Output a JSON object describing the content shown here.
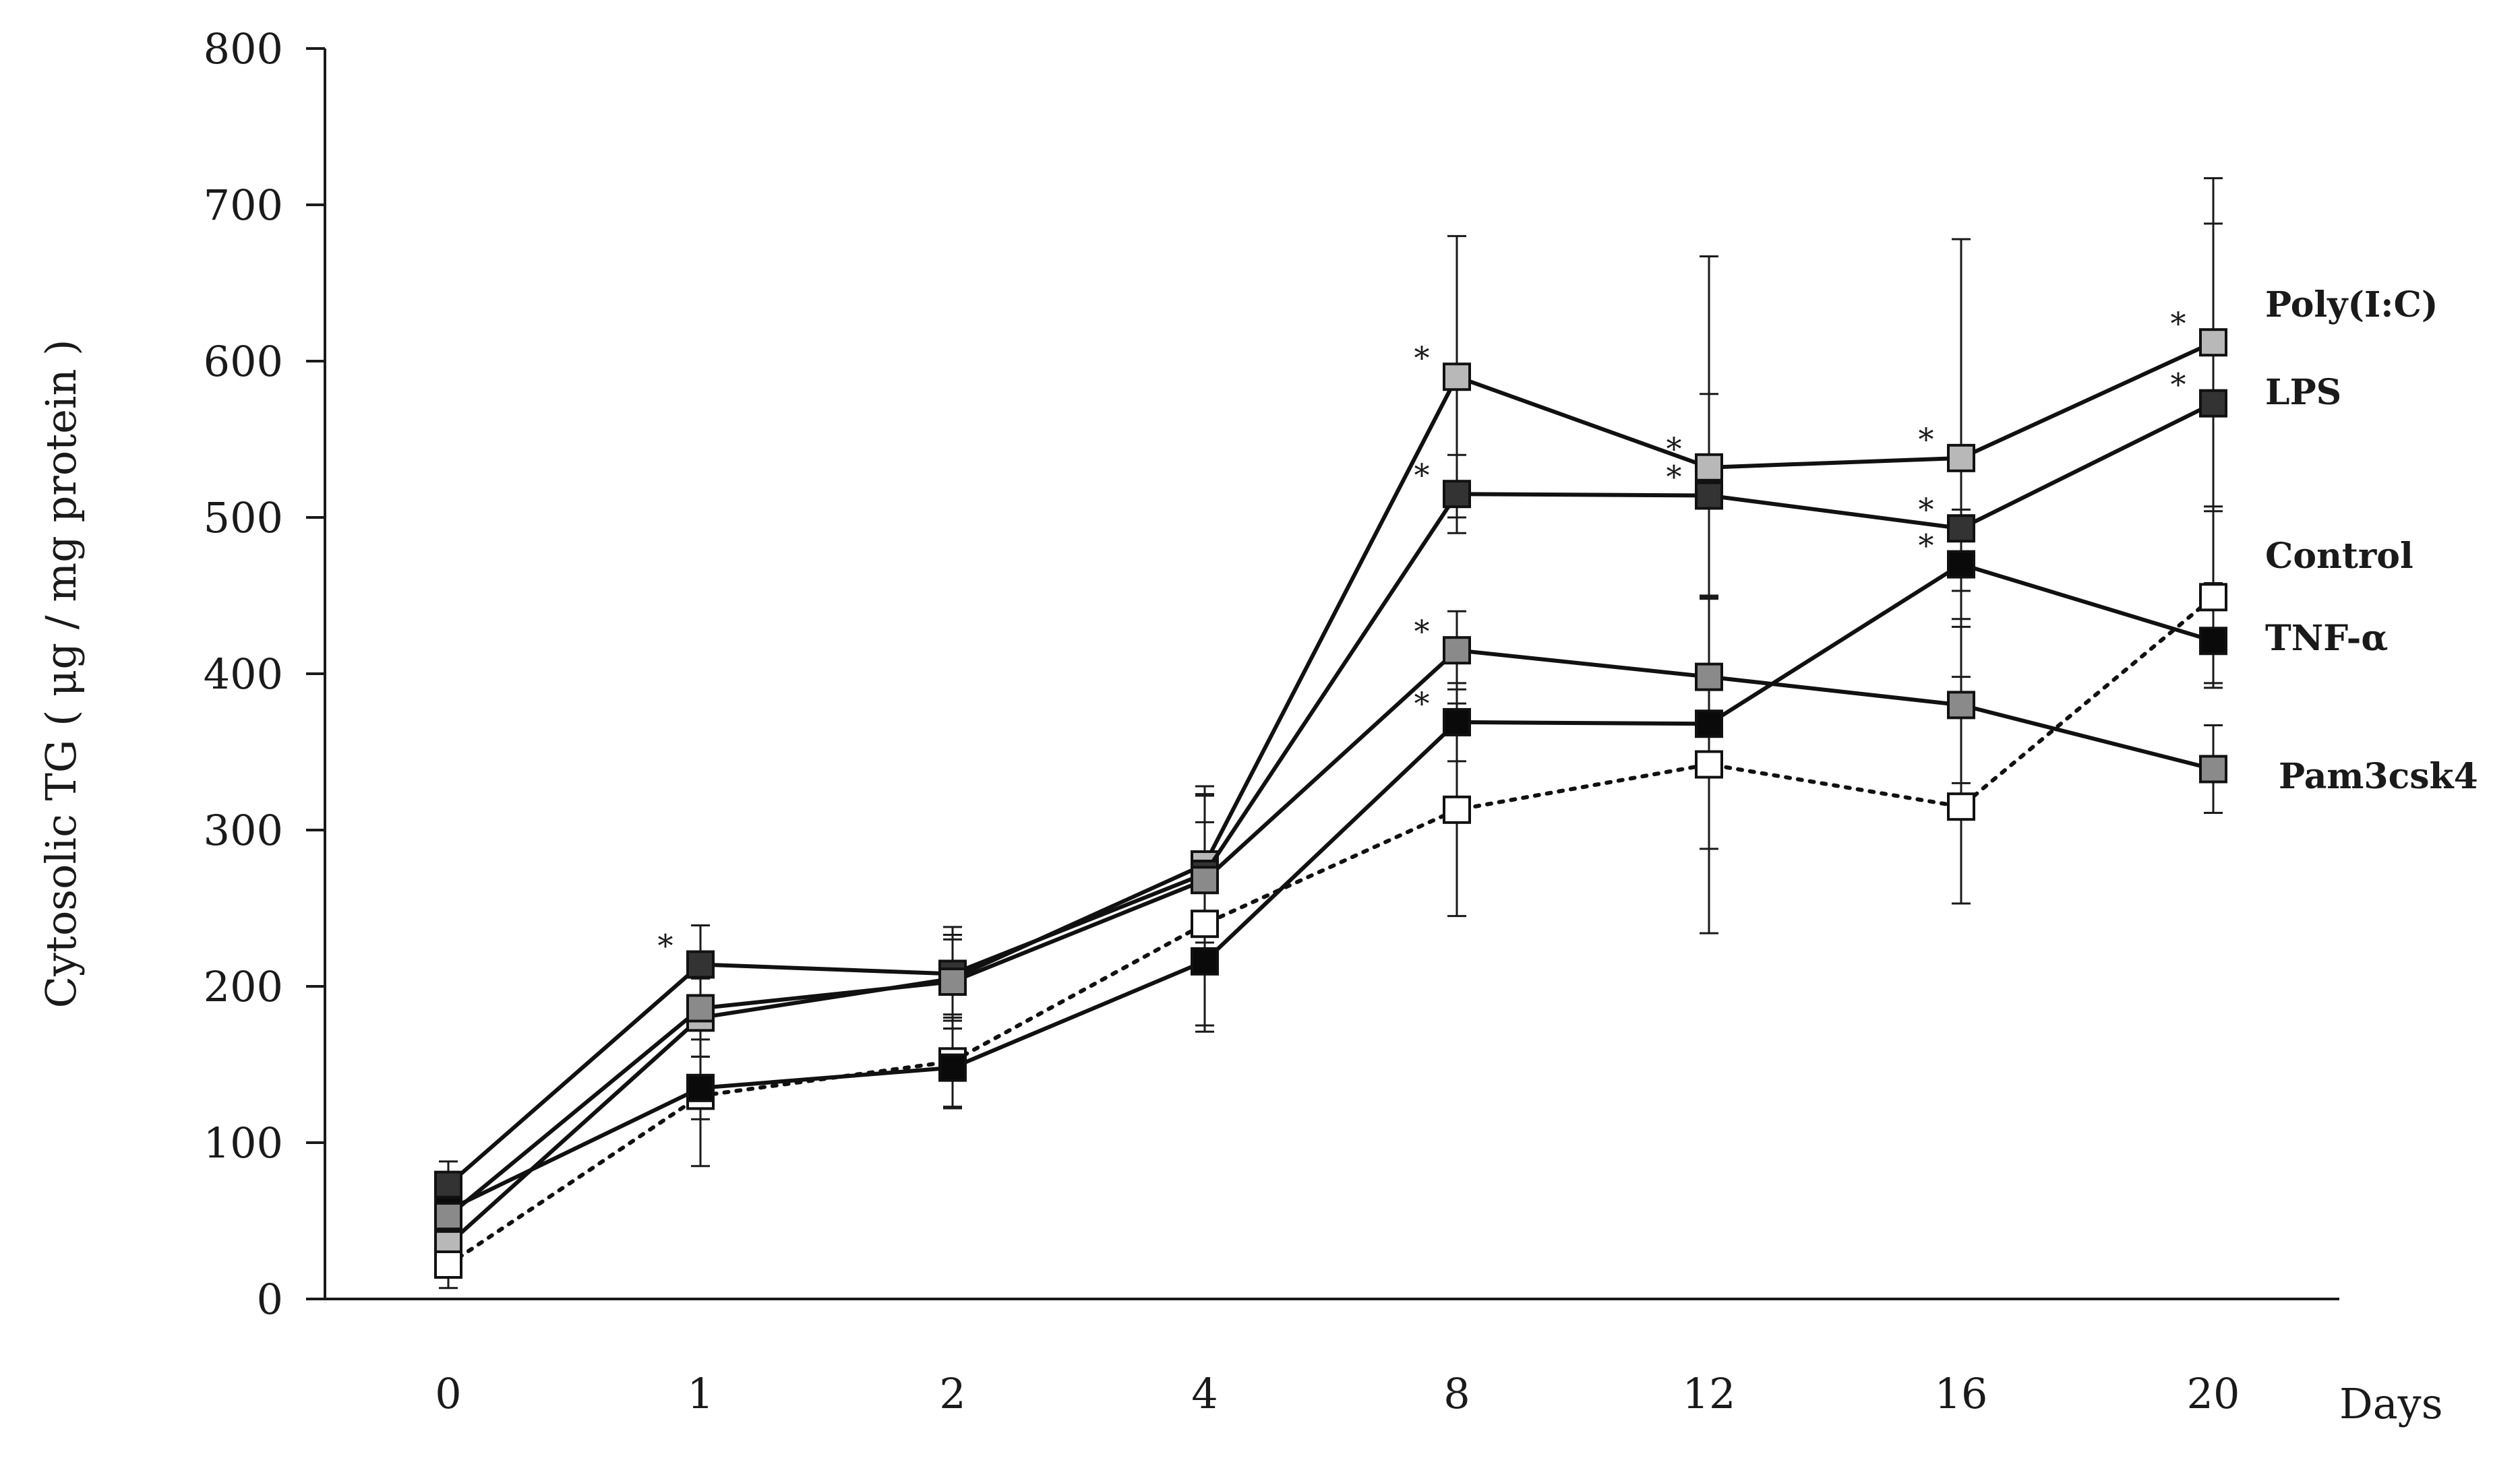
{
  "chart_data": {
    "type": "line",
    "xlabel": "Days",
    "ylabel": "Cytosolic TG ( μg / mg protein )",
    "ylim": [
      0,
      800
    ],
    "yticks": [
      0,
      100,
      200,
      300,
      400,
      500,
      600,
      700,
      800
    ],
    "categories": [
      "0",
      "1",
      "2",
      "4",
      "8",
      "12",
      "16",
      "20"
    ],
    "grid": false,
    "legend": "inline labels at right end of each series",
    "series": [
      {
        "name": "Poly(I:C)",
        "marker_fill": "#b8b8b8",
        "line_style": "solid",
        "values": [
          35,
          180,
          205,
          278,
          590,
          532,
          538,
          612
        ],
        "errors": [
          null,
          25,
          25,
          50,
          90,
          135,
          140,
          105
        ],
        "significant": [
          false,
          false,
          false,
          false,
          true,
          true,
          true,
          true
        ]
      },
      {
        "name": "LPS",
        "marker_fill": "#333333",
        "line_style": "solid",
        "values": [
          73,
          214,
          208,
          272,
          515,
          514,
          493,
          573
        ],
        "errors": [
          15,
          25,
          30,
          50,
          25,
          65,
          40,
          115
        ],
        "significant": [
          false,
          true,
          false,
          false,
          true,
          true,
          true,
          true
        ]
      },
      {
        "name": "Control",
        "marker_fill": "#ffffff",
        "line_style": "dotted",
        "values": [
          22,
          130,
          152,
          240,
          313,
          342,
          315,
          449
        ],
        "errors": [
          15,
          45,
          30,
          65,
          68,
          108,
          62,
          55
        ],
        "significant": [
          false,
          false,
          false,
          false,
          false,
          false,
          false,
          false
        ]
      },
      {
        "name": "TNF-α",
        "marker_fill": "#0a0a0a",
        "line_style": "solid",
        "values": [
          57,
          135,
          148,
          216,
          369,
          368,
          470,
          421
        ],
        "errors": [
          15,
          20,
          25,
          45,
          25,
          80,
          35,
          30
        ],
        "significant": [
          false,
          false,
          false,
          false,
          true,
          false,
          true,
          false
        ]
      },
      {
        "name": "Pam3csk4",
        "marker_fill": "#8a8a8a",
        "line_style": "solid",
        "values": [
          53,
          186,
          203,
          268,
          415,
          398,
          380,
          339
        ],
        "errors": [
          15,
          20,
          30,
          55,
          25,
          50,
          50,
          28
        ],
        "significant": [
          false,
          false,
          false,
          false,
          true,
          false,
          false,
          false
        ]
      }
    ],
    "significance_marker": "*"
  }
}
